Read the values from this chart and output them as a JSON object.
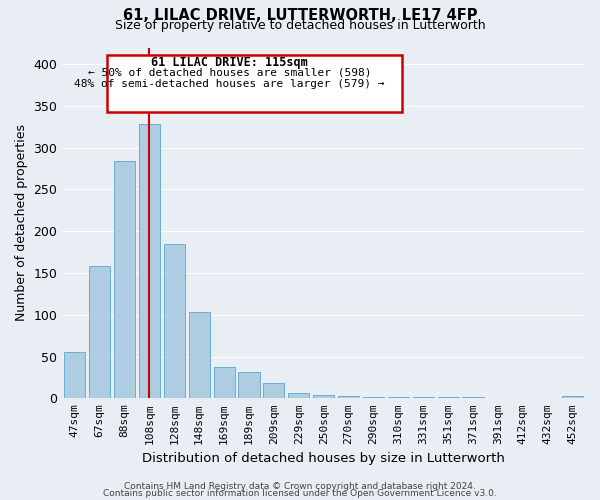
{
  "title1": "61, LILAC DRIVE, LUTTERWORTH, LE17 4FP",
  "title2": "Size of property relative to detached houses in Lutterworth",
  "xlabel": "Distribution of detached houses by size in Lutterworth",
  "ylabel": "Number of detached properties",
  "bar_labels": [
    "47sqm",
    "67sqm",
    "88sqm",
    "108sqm",
    "128sqm",
    "148sqm",
    "169sqm",
    "189sqm",
    "209sqm",
    "229sqm",
    "250sqm",
    "270sqm",
    "290sqm",
    "310sqm",
    "331sqm",
    "351sqm",
    "371sqm",
    "391sqm",
    "412sqm",
    "432sqm",
    "452sqm"
  ],
  "bar_values": [
    55,
    158,
    284,
    328,
    185,
    103,
    37,
    31,
    18,
    6,
    4,
    3,
    2,
    1,
    1,
    1,
    1,
    0,
    0,
    0,
    3
  ],
  "bar_color": "#aecde0",
  "bar_edge_color": "#6aaed6",
  "annotation_text_line1": "61 LILAC DRIVE: 115sqm",
  "annotation_text_line2": "← 50% of detached houses are smaller (598)",
  "annotation_text_line3": "48% of semi-detached houses are larger (579) →",
  "annotation_box_color": "#ffffff",
  "annotation_box_edge": "#cc0000",
  "red_line_color": "#cc0000",
  "ylim": [
    0,
    420
  ],
  "yticks": [
    0,
    50,
    100,
    150,
    200,
    250,
    300,
    350,
    400
  ],
  "footer1": "Contains HM Land Registry data © Crown copyright and database right 2024.",
  "footer2": "Contains public sector information licensed under the Open Government Licence v3.0.",
  "bg_color": "#e8eef4",
  "grid_color": "#ffffff",
  "title_fontsize": 10.5,
  "subtitle_fontsize": 9,
  "axis_label_fontsize": 9,
  "tick_fontsize": 8,
  "footer_fontsize": 6.5
}
